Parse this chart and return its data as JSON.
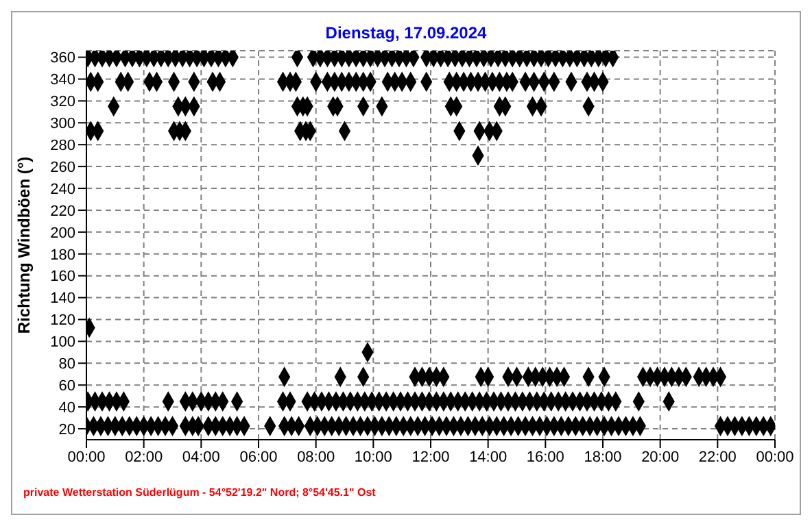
{
  "chart_data": {
    "type": "scatter",
    "title": "Dienstag, 17.09.2024",
    "ylabel": "Richtung Windböen  (°)",
    "annotations": [
      "private Wetterstation Süderlügum - 54°52'19.2\" Nord; 8°54'45.1\" Ost"
    ],
    "xlim": [
      0,
      24
    ],
    "xticks": [
      {
        "value": 0,
        "label": "00:00"
      },
      {
        "value": 2,
        "label": "02:00"
      },
      {
        "value": 4,
        "label": "04:00"
      },
      {
        "value": 6,
        "label": "06:00"
      },
      {
        "value": 8,
        "label": "08:00"
      },
      {
        "value": 10,
        "label": "10:00"
      },
      {
        "value": 12,
        "label": "12:00"
      },
      {
        "value": 14,
        "label": "14:00"
      },
      {
        "value": 16,
        "label": "16:00"
      },
      {
        "value": 18,
        "label": "18:00"
      },
      {
        "value": 20,
        "label": "20:00"
      },
      {
        "value": 22,
        "label": "22:00"
      },
      {
        "value": 24,
        "label": "00:00"
      }
    ],
    "ylim": [
      10,
      366
    ],
    "yticks": [
      20,
      40,
      60,
      80,
      100,
      120,
      140,
      160,
      180,
      200,
      220,
      240,
      260,
      280,
      300,
      320,
      340,
      360
    ],
    "grid": true,
    "legend": false,
    "marker": "diamond",
    "series": [
      {
        "color": "#000000",
        "x": [
          0.05,
          0.3,
          0.55,
          0.8,
          1.05,
          1.35,
          1.6,
          1.85,
          2.1,
          2.35,
          2.6,
          2.85,
          3.1,
          3.35,
          3.6,
          3.85,
          4.1,
          4.35,
          4.6,
          4.85,
          5.1,
          7.35,
          7.9,
          8.15,
          8.4,
          8.65,
          8.9,
          9.15,
          9.4,
          9.65,
          9.9,
          10.15,
          10.4,
          10.65,
          10.9,
          11.15,
          11.4,
          11.85,
          12.1,
          12.35,
          12.6,
          12.85,
          13.1,
          13.35,
          13.6,
          13.85,
          14.1,
          14.35,
          14.6,
          14.85,
          15.1,
          15.35,
          15.6,
          15.85,
          16.1,
          16.35,
          16.6,
          16.85,
          17.1,
          17.35,
          17.6,
          17.85,
          18.1,
          18.35
        ],
        "values": [
          360,
          360,
          360,
          360,
          360,
          360,
          360,
          360,
          360,
          360,
          360,
          360,
          360,
          360,
          360,
          360,
          360,
          360,
          360,
          360,
          360,
          360,
          360,
          360,
          360,
          360,
          360,
          360,
          360,
          360,
          360,
          360,
          360,
          360,
          360,
          360,
          360,
          360,
          360,
          360,
          360,
          360,
          360,
          360,
          360,
          360,
          360,
          360,
          360,
          360,
          360,
          360,
          360,
          360,
          360,
          360,
          360,
          360,
          360,
          360,
          360,
          360,
          360,
          360
        ]
      },
      {
        "color": "#000000",
        "x": [
          0.15,
          0.4,
          1.2,
          1.45,
          2.2,
          2.45,
          3.05,
          3.75,
          4.4,
          4.65,
          6.85,
          7.1,
          7.3,
          8.0,
          8.4,
          8.65,
          8.9,
          9.15,
          9.4,
          9.65,
          9.9,
          10.5,
          10.75,
          11.0,
          11.3,
          11.85,
          12.65,
          12.9,
          13.15,
          13.4,
          13.65,
          13.9,
          14.15,
          14.4,
          14.65,
          14.85,
          15.3,
          15.6,
          15.95,
          16.3,
          16.9,
          17.45,
          17.7,
          18.0
        ],
        "values": [
          337.5,
          337.5,
          337.5,
          337.5,
          337.5,
          337.5,
          337.5,
          337.5,
          337.5,
          337.5,
          337.5,
          337.5,
          337.5,
          337.5,
          337.5,
          337.5,
          337.5,
          337.5,
          337.5,
          337.5,
          337.5,
          337.5,
          337.5,
          337.5,
          337.5,
          337.5,
          337.5,
          337.5,
          337.5,
          337.5,
          337.5,
          337.5,
          337.5,
          337.5,
          337.5,
          337.5,
          337.5,
          337.5,
          337.5,
          337.5,
          337.5,
          337.5,
          337.5,
          337.5
        ]
      },
      {
        "color": "#000000",
        "x": [
          0.95,
          3.2,
          3.45,
          3.75,
          7.35,
          7.55,
          7.7,
          8.6,
          8.75,
          9.65,
          10.3,
          12.7,
          12.9,
          14.4,
          14.6,
          15.55,
          15.85,
          17.5
        ],
        "values": [
          315,
          315,
          315,
          315,
          315,
          315,
          315,
          315,
          315,
          315,
          315,
          315,
          315,
          315,
          315,
          315,
          315,
          315
        ]
      },
      {
        "color": "#000000",
        "x": [
          0.15,
          0.4,
          3.05,
          3.25,
          3.45,
          7.45,
          7.65,
          7.8,
          9.0,
          13.0,
          13.7,
          14.05,
          14.3
        ],
        "values": [
          292.5,
          292.5,
          292.5,
          292.5,
          292.5,
          292.5,
          292.5,
          292.5,
          292.5,
          292.5,
          292.5,
          292.5,
          292.5
        ]
      },
      {
        "color": "#000000",
        "x": [
          13.65,
          0.1,
          9.8
        ],
        "values": [
          270,
          112.5,
          90
        ]
      },
      {
        "color": "#000000",
        "x": [
          6.9,
          8.85,
          9.65,
          11.45,
          11.7,
          11.95,
          12.2,
          12.45,
          13.75,
          14.0,
          14.7,
          15.0,
          15.4,
          15.65,
          15.9,
          16.15,
          16.4,
          16.65,
          17.5,
          18.05,
          19.4,
          19.65,
          19.9,
          20.15,
          20.4,
          20.65,
          20.9,
          21.35,
          21.6,
          21.85,
          22.1
        ],
        "values": [
          67.5,
          67.5,
          67.5,
          67.5,
          67.5,
          67.5,
          67.5,
          67.5,
          67.5,
          67.5,
          67.5,
          67.5,
          67.5,
          67.5,
          67.5,
          67.5,
          67.5,
          67.5,
          67.5,
          67.5,
          67.5,
          67.5,
          67.5,
          67.5,
          67.5,
          67.5,
          67.5,
          67.5,
          67.5,
          67.5,
          67.5
        ]
      },
      {
        "color": "#000000",
        "x": [
          0.05,
          0.3,
          0.55,
          0.8,
          1.05,
          1.3,
          2.85,
          3.45,
          3.7,
          4.0,
          4.25,
          4.5,
          4.75,
          5.25,
          6.85,
          7.1,
          7.7,
          7.95,
          8.2,
          8.45,
          8.7,
          8.95,
          9.2,
          9.45,
          9.7,
          9.95,
          10.2,
          10.45,
          10.7,
          10.95,
          11.2,
          11.45,
          11.7,
          11.95,
          12.2,
          12.45,
          12.7,
          12.95,
          13.2,
          13.45,
          13.7,
          13.95,
          14.2,
          14.45,
          14.7,
          14.95,
          15.2,
          15.45,
          15.7,
          15.95,
          16.2,
          16.45,
          16.7,
          16.95,
          17.2,
          17.45,
          17.7,
          17.95,
          18.2,
          18.45,
          19.25,
          20.3
        ],
        "values": [
          45,
          45,
          45,
          45,
          45,
          45,
          45,
          45,
          45,
          45,
          45,
          45,
          45,
          45,
          45,
          45,
          45,
          45,
          45,
          45,
          45,
          45,
          45,
          45,
          45,
          45,
          45,
          45,
          45,
          45,
          45,
          45,
          45,
          45,
          45,
          45,
          45,
          45,
          45,
          45,
          45,
          45,
          45,
          45,
          45,
          45,
          45,
          45,
          45,
          45,
          45,
          45,
          45,
          45,
          45,
          45,
          45,
          45,
          45,
          45,
          45,
          45
        ]
      },
      {
        "color": "#000000",
        "x": [
          0,
          0.25,
          0.5,
          0.75,
          1.0,
          1.25,
          1.5,
          1.75,
          2.0,
          2.25,
          2.5,
          2.75,
          3.0,
          3.45,
          3.7,
          3.9,
          4.25,
          4.5,
          4.75,
          5.0,
          5.25,
          5.5,
          6.4,
          6.9,
          7.15,
          7.4,
          7.8,
          8.05,
          8.3,
          8.55,
          8.8,
          9.05,
          9.3,
          9.55,
          9.8,
          10.05,
          10.3,
          10.55,
          10.8,
          11.05,
          11.3,
          11.55,
          11.8,
          12.05,
          12.3,
          12.55,
          12.8,
          13.05,
          13.3,
          13.55,
          13.8,
          14.05,
          14.3,
          14.55,
          14.8,
          15.05,
          15.3,
          15.55,
          15.8,
          16.05,
          16.3,
          16.55,
          16.8,
          17.05,
          17.3,
          17.55,
          17.8,
          18.05,
          18.3,
          18.55,
          18.8,
          19.05,
          19.3,
          22.1,
          22.35,
          22.6,
          22.85,
          23.1,
          23.35,
          23.6,
          23.85
        ],
        "values": [
          22.5,
          22.5,
          22.5,
          22.5,
          22.5,
          22.5,
          22.5,
          22.5,
          22.5,
          22.5,
          22.5,
          22.5,
          22.5,
          22.5,
          22.5,
          22.5,
          22.5,
          22.5,
          22.5,
          22.5,
          22.5,
          22.5,
          22.5,
          22.5,
          22.5,
          22.5,
          22.5,
          22.5,
          22.5,
          22.5,
          22.5,
          22.5,
          22.5,
          22.5,
          22.5,
          22.5,
          22.5,
          22.5,
          22.5,
          22.5,
          22.5,
          22.5,
          22.5,
          22.5,
          22.5,
          22.5,
          22.5,
          22.5,
          22.5,
          22.5,
          22.5,
          22.5,
          22.5,
          22.5,
          22.5,
          22.5,
          22.5,
          22.5,
          22.5,
          22.5,
          22.5,
          22.5,
          22.5,
          22.5,
          22.5,
          22.5,
          22.5,
          22.5,
          22.5,
          22.5,
          22.5,
          22.5,
          22.5,
          22.5,
          22.5,
          22.5,
          22.5,
          22.5,
          22.5,
          22.5,
          22.5
        ]
      }
    ]
  }
}
